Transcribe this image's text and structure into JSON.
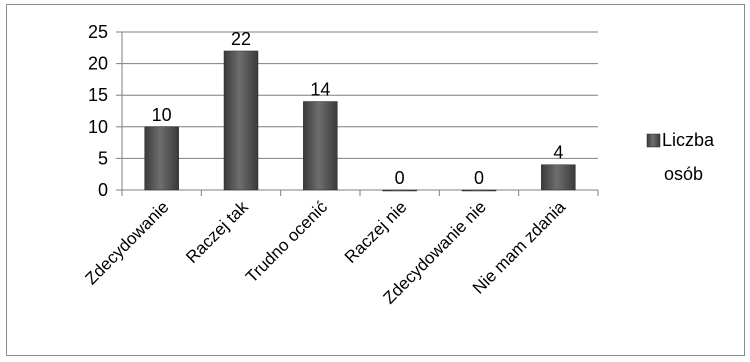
{
  "chart_data": {
    "type": "bar",
    "categories": [
      "Zdecydowanie",
      "Raczej tak",
      "Trudno ocenić",
      "Raczej nie",
      "Zdecydowanie nie",
      "Nie mam zdania"
    ],
    "series": [
      {
        "name": "Liczba osób",
        "values": [
          10,
          22,
          14,
          0,
          0,
          4
        ]
      }
    ],
    "data_labels": [
      "10",
      "22",
      "14",
      "0",
      "0",
      "4"
    ],
    "y_ticks": [
      "0",
      "5",
      "10",
      "15",
      "20",
      "25"
    ],
    "ylim": [
      0,
      25
    ],
    "grid": true,
    "legend": {
      "position": "right",
      "label_line1": "Liczba",
      "label_line2": "osób"
    },
    "colors": {
      "bar": "#4a4a4a",
      "bar_highlight": "#6e6e6e",
      "grid": "#7f7f7f",
      "axis": "#7f7f7f"
    }
  }
}
